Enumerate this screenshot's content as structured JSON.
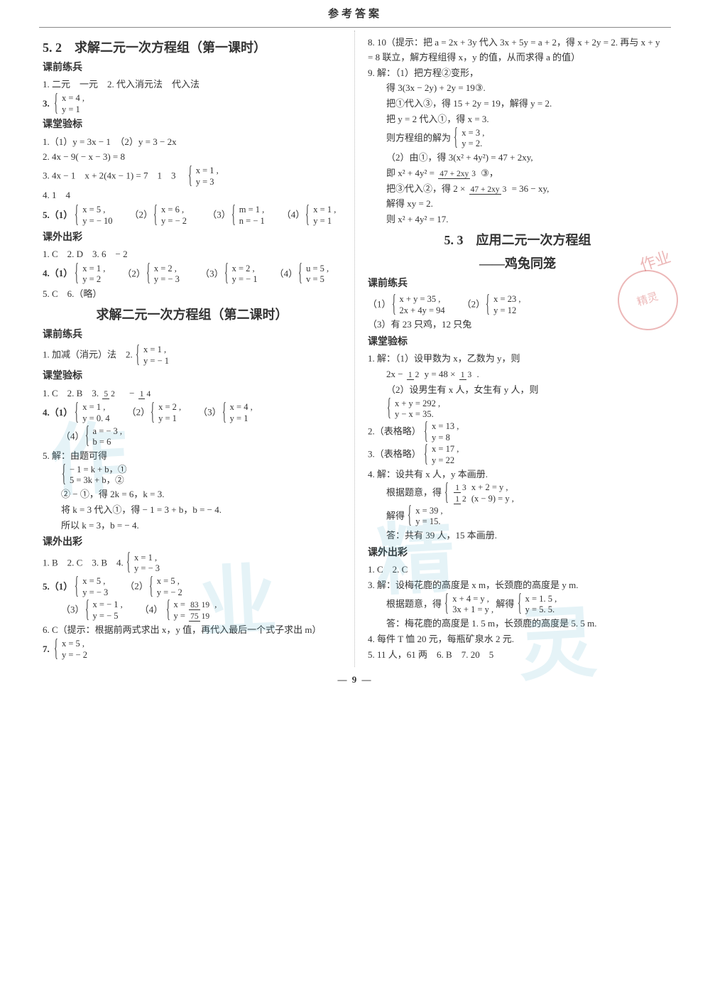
{
  "header": "参考答案",
  "pageNumber": "— 9 —",
  "watermarks": {
    "w1": "作",
    "w2": "业",
    "w3": "精",
    "w4": "灵"
  },
  "stamp": {
    "top": "作业",
    "inner": "精灵"
  },
  "left": {
    "sec52": {
      "title": "5. 2　求解二元一次方程组（第一课时）"
    },
    "h1": "课前练兵",
    "p1": "1. 二元　一元　2. 代入消元法　代入法",
    "p3n": "3.",
    "p3a": "x = 4 ,",
    "p3b": "y = 1",
    "h2": "课堂验标",
    "p4": "1.（1）y = 3x − 1　（2）y = 3 − 2x",
    "p5": "2. 4x − 9( − x − 3) = 8",
    "p6a": "3. 4x − 1　x + 2(4x − 1) = 7　1　3　",
    "p6b1": "x = 1 ,",
    "p6b2": "y = 3",
    "p7": "4. 1　4",
    "p8n": "5.（1）",
    "p8a1": "x = 5 ,",
    "p8a2": "y = − 10",
    "p8m": "（2）",
    "p8b1": "x = 6 ,",
    "p8b2": "y = − 2",
    "p9n": "（3）",
    "p9a1": "m = 1 ,",
    "p9a2": "n = − 1",
    "p9m": "（4）",
    "p9b1": "x = 1 ,",
    "p9b2": "y = 1",
    "h3": "课外出彩",
    "p10": "1. C　2. D　3. 6　− 2",
    "p11n": "4.（1）",
    "p11a1": "x = 1 ,",
    "p11a2": "y = 2",
    "p11m": "（2）",
    "p11b1": "x = 2 ,",
    "p11b2": "y = − 3",
    "p12n": "（3）",
    "p12a1": "x = 2 ,",
    "p12a2": "y = − 1",
    "p12m": "（4）",
    "p12b1": "u = 5 ,",
    "p12b2": "v = 5",
    "p13": "5. C　6.（略）",
    "sec52b": {
      "title": "求解二元一次方程组（第二课时）"
    },
    "h4": "课前练兵",
    "p14a": "1. 加减（消元）法　2. ",
    "p14b1": "x = 1 ,",
    "p14b2": "y = − 1",
    "h5": "课堂验标",
    "p15a": "1. C　2. B　3. ",
    "p15f1t": "5",
    "p15f1b": "2",
    "p15mid": "　− ",
    "p15f2t": "1",
    "p15f2b": "4",
    "p16n": "4.（1）",
    "p16a1": "x = 1 ,",
    "p16a2": "y = 0. 4",
    "p16m": "（2）",
    "p16b1": "x = 2 ,",
    "p16b2": "y = 1",
    "p16m2": "（3）",
    "p16c1": "x = 4 ,",
    "p16c2": "y = 1",
    "p17n": "（4）",
    "p17a1": "a = − 3 ,",
    "p17a2": "b = 6",
    "p18": "5. 解：由题可得",
    "p18a1": "− 1 = k + b，①",
    "p18a2": "5 = 3k + b，②",
    "p18c": "② − ①，得 2k = 6，k = 3.",
    "p18d": "将 k = 3 代入①，得 − 1 = 3 + b，b = − 4.",
    "p18e": "所以 k = 3，b = − 4.",
    "h6": "课外出彩",
    "p19a": "1. B　2. C　3. B　4. ",
    "p19b1": "x = 1 ,",
    "p19b2": "y = − 3",
    "p20n": "5.（1）",
    "p20a1": "x = 5 ,",
    "p20a2": "y = − 3",
    "p20m": "（2）",
    "p20b1": "x = 5 ,",
    "p20b2": "y = − 2",
    "p21n": "（3）",
    "p21a1": "x = − 1 ,",
    "p21a2": "y = − 5",
    "p21m": "（4）",
    "p21bx": "x = ",
    "p21bxt": "83",
    "p21bxb": "19",
    "p21bxe": " ,",
    "p21by": "y = ",
    "p21byt": "75",
    "p21byb": "19",
    "p22": "6. C（提示：根据前两式求出 x，y 值，再代入最后一个式子求出 m）",
    "p23n": "7. ",
    "p23a1": "x = 5 ,",
    "p23a2": "y = − 2"
  },
  "right": {
    "p1": "8. 10（提示：把 a = 2x + 3y 代入 3x + 5y = a + 2，得 x + 2y = 2. 再与 x + y = 8 联立，解方程组得 x，y 的值，从而求得 a 的值）",
    "p2": "9. 解：（1）把方程②变形，",
    "p2a": "得 3(3x − 2y) + 2y = 19③.",
    "p2b": "把①代入③，得 15 + 2y = 19，解得 y = 2.",
    "p2c": "把 y = 2 代入①，得 x = 3.",
    "p2d": "则方程组的解为",
    "p2d1": "x = 3 ,",
    "p2d2": "y = 2.",
    "p2e": "（2）由①，得 3(x² + 4y²) = 47 + 2xy,",
    "p2fa": "即 x² + 4y² = ",
    "p2ft": "47 + 2xy",
    "p2fb": "3",
    "p2fe": " ③，",
    "p2ga": "把③代入②，得 2 × ",
    "p2gt": "47 + 2xy",
    "p2gb": "3",
    "p2ge": " = 36 − xy,",
    "p2h": "解得 xy = 2.",
    "p2i": "则 x² + 4y² = 17.",
    "sec53": {
      "title1": "5. 3　应用二元一次方程组",
      "title2": "——鸡兔同笼"
    },
    "h1": "课前练兵",
    "p3n": "（1）",
    "p3a1": "x + y = 35 ,",
    "p3a2": "2x + 4y = 94",
    "p3m": "（2）",
    "p3b1": "x = 23 ,",
    "p3b2": "y = 12",
    "p3c": "（3）有 23 只鸡，12 只兔",
    "h2": "课堂验标",
    "p4": "1. 解：（1）设甲数为 x，乙数为 y，则",
    "p4ba": "2x − ",
    "p4b1t": "1",
    "p4b1b": "2",
    "p4bm": " y = 48 × ",
    "p4b2t": "1",
    "p4b2b": "3",
    "p4be": " .",
    "p4c": "（2）设男生有 x 人，女生有 y 人，则",
    "p4d1": "x + y = 292 ,",
    "p4d2": "y − x = 35.",
    "p5a": "2.（表格略）",
    "p5b1": "x = 13 ,",
    "p5b2": "y = 8",
    "p6a": "3.（表格略）",
    "p6b1": "x = 17 ,",
    "p6b2": "y = 22",
    "p7": "4. 解：设共有 x 人，y 本画册.",
    "p7a": "根据题意，得",
    "p7l1a": "1",
    "p7l1b": "3",
    "p7l1e": " x + 2 = y ,",
    "p7l2a": "1",
    "p7l2b": "2",
    "p7l2e": " (x − 9) = y ,",
    "p7c": "解得",
    "p7c1": "x = 39 ,",
    "p7c2": "y = 15.",
    "p7d": "答：共有 39 人，15 本画册.",
    "h3": "课外出彩",
    "p8": "1. C　2. C",
    "p9": "3. 解：设梅花鹿的高度是 x m，长颈鹿的高度是 y m.",
    "p9a": "根据题意，得",
    "p9b1": "x + 4 = y ,",
    "p9b2": "3x + 1 = y ,",
    "p9m": "解得",
    "p9c1": "x = 1. 5 ,",
    "p9c2": "y = 5. 5.",
    "p9d": "答：梅花鹿的高度是 1. 5 m，长颈鹿的高度是 5. 5 m.",
    "p10": "4. 每件 T 恤 20 元，每瓶矿泉水 2 元.",
    "p11": "5. 11 人，61 两　6. B　7. 20　5"
  }
}
